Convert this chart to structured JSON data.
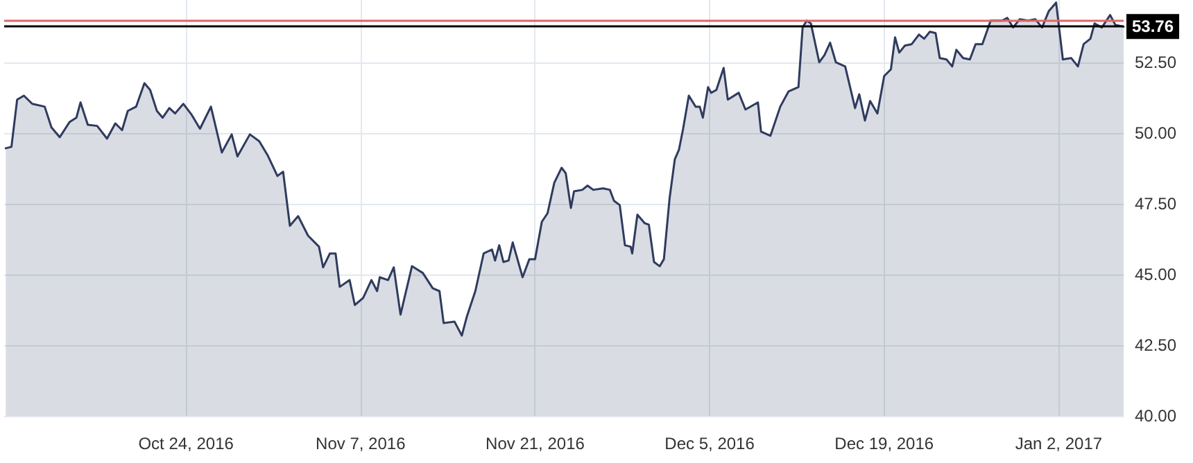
{
  "chart_data": {
    "type": "area",
    "x": [
      "2016-10-09T13:00",
      "2016-10-10T00:00",
      "2016-10-10T11:00",
      "2016-10-11T00:00",
      "2016-10-11T16:00",
      "2016-10-12T16:00",
      "2016-10-13T05:00",
      "2016-10-13T21:00",
      "2016-10-14T16:00",
      "2016-10-15T05:00",
      "2016-10-15T13:00",
      "2016-10-16T03:00",
      "2016-10-16T21:00",
      "2016-10-17T16:00",
      "2016-10-18T08:00",
      "2016-10-18T21:00",
      "2016-10-19T08:00",
      "2016-10-20T00:00",
      "2016-10-20T16:00",
      "2016-10-21T03:00",
      "2016-10-21T16:00",
      "2016-10-22T03:00",
      "2016-10-22T16:00",
      "2016-10-23T03:00",
      "2016-10-23T19:00",
      "2016-10-24T11:00",
      "2016-10-25T03:00",
      "2016-10-26T00:00",
      "2016-10-26T21:00",
      "2016-10-27T16:00",
      "2016-10-28T03:00",
      "2016-10-29T03:00",
      "2016-10-29T21:00",
      "2016-10-30T13:00",
      "2016-10-31T08:00",
      "2016-10-31T19:00",
      "2016-11-01T08:00",
      "2016-11-02T00:00",
      "2016-11-02T19:00",
      "2016-11-03T16:00",
      "2016-11-04T00:00",
      "2016-11-04T13:00",
      "2016-11-05T00:00",
      "2016-11-05T08:00",
      "2016-11-06T03:00",
      "2016-11-06T13:00",
      "2016-11-07T05:00",
      "2016-11-07T21:00",
      "2016-11-08T08:00",
      "2016-11-08T13:00",
      "2016-11-09T05:00",
      "2016-11-09T16:00",
      "2016-11-10T05:00",
      "2016-11-11T03:00",
      "2016-11-12T00:00",
      "2016-11-12T19:00",
      "2016-11-13T08:00",
      "2016-11-13T16:00",
      "2016-11-14T13:00",
      "2016-11-15T03:00",
      "2016-11-15T13:00",
      "2016-11-16T05:00",
      "2016-11-16T21:00",
      "2016-11-17T13:00",
      "2016-11-17T19:00",
      "2016-11-18T03:00",
      "2016-11-18T11:00",
      "2016-11-18T21:00",
      "2016-11-19T05:00",
      "2016-11-20T00:00",
      "2016-11-20T13:00",
      "2016-11-21T00:00",
      "2016-11-21T13:00",
      "2016-11-22T00:00",
      "2016-11-22T13:00",
      "2016-11-23T03:00",
      "2016-11-23T11:00",
      "2016-11-23T21:00",
      "2016-11-24T03:00",
      "2016-11-24T19:00",
      "2016-11-25T05:00",
      "2016-11-25T16:00",
      "2016-11-26T11:00",
      "2016-11-27T00:00",
      "2016-11-27T08:00",
      "2016-11-27T19:00",
      "2016-11-28T05:00",
      "2016-11-28T16:00",
      "2016-11-28T19:00",
      "2016-11-29T05:00",
      "2016-11-29T19:00",
      "2016-11-30T03:00",
      "2016-11-30T13:00",
      "2016-12-01T00:00",
      "2016-12-01T08:00",
      "2016-12-01T19:00",
      "2016-12-02T05:00",
      "2016-12-02T13:00",
      "2016-12-02T21:00",
      "2016-12-03T08:00",
      "2016-12-03T21:00",
      "2016-12-04T05:00",
      "2016-12-04T11:00",
      "2016-12-04T21:00",
      "2016-12-05T03:00",
      "2016-12-05T13:00",
      "2016-12-06T03:00",
      "2016-12-06T11:00",
      "2016-12-07T08:00",
      "2016-12-07T21:00",
      "2016-12-08T21:00",
      "2016-12-09T03:00",
      "2016-12-09T21:00",
      "2016-12-10T16:00",
      "2016-12-11T08:00",
      "2016-12-12T03:00",
      "2016-12-12T11:00",
      "2016-12-12T19:00",
      "2016-12-13T03:00",
      "2016-12-13T19:00",
      "2016-12-14T05:00",
      "2016-12-14T16:00",
      "2016-12-15T03:00",
      "2016-12-15T21:00",
      "2016-12-16T16:00",
      "2016-12-17T00:00",
      "2016-12-17T11:00",
      "2016-12-17T21:00",
      "2016-12-18T11:00",
      "2016-12-19T00:00",
      "2016-12-19T13:00",
      "2016-12-19T21:00",
      "2016-12-20T05:00",
      "2016-12-20T16:00",
      "2016-12-21T05:00",
      "2016-12-21T19:00",
      "2016-12-22T05:00",
      "2016-12-22T16:00",
      "2016-12-23T03:00",
      "2016-12-23T11:00",
      "2016-12-24T00:00",
      "2016-12-24T11:00",
      "2016-12-24T19:00",
      "2016-12-25T08:00",
      "2016-12-25T21:00",
      "2016-12-26T08:00",
      "2016-12-26T21:00",
      "2016-12-27T13:00",
      "2016-12-28T11:00",
      "2016-12-28T21:00",
      "2016-12-29T08:00",
      "2016-12-29T21:00",
      "2016-12-30T13:00",
      "2016-12-31T03:00",
      "2016-12-31T16:00",
      "2017-01-01T05:00",
      "2017-01-01T19:00",
      "2017-01-02T08:00",
      "2017-01-03T00:00",
      "2017-01-03T13:00",
      "2017-01-04T00:00",
      "2017-01-04T13:00",
      "2017-01-04T21:00",
      "2017-01-05T11:00",
      "2017-01-06T03:00",
      "2017-01-06T13:00",
      "2017-01-07T05:00"
    ],
    "series": [
      {
        "color": "#2f3b5e",
        "values": [
          49.46,
          49.51,
          51.18,
          51.32,
          51.03,
          50.93,
          50.2,
          49.85,
          50.39,
          50.54,
          51.08,
          50.29,
          50.25,
          49.8,
          50.34,
          50.1,
          50.78,
          50.93,
          51.76,
          51.52,
          50.78,
          50.54,
          50.88,
          50.69,
          51.03,
          50.64,
          50.15,
          50.93,
          49.31,
          49.95,
          49.17,
          49.95,
          49.71,
          49.22,
          48.48,
          48.63,
          46.72,
          47.06,
          46.37,
          45.98,
          45.25,
          45.74,
          45.74,
          44.56,
          44.8,
          43.92,
          44.17,
          44.8,
          44.41,
          44.9,
          44.8,
          45.25,
          43.58,
          45.29,
          45.05,
          44.51,
          44.41,
          43.28,
          43.33,
          42.84,
          43.53,
          44.41,
          45.74,
          45.88,
          45.49,
          46.03,
          45.44,
          45.49,
          46.13,
          44.9,
          45.54,
          45.54,
          46.86,
          47.16,
          48.24,
          48.77,
          48.58,
          47.35,
          47.94,
          47.99,
          48.14,
          47.99,
          48.04,
          47.99,
          47.6,
          47.45,
          46.03,
          45.98,
          45.74,
          47.11,
          46.81,
          46.76,
          45.44,
          45.29,
          45.54,
          47.7,
          49.07,
          49.41,
          50.15,
          51.32,
          50.93,
          50.93,
          50.54,
          51.62,
          51.42,
          51.52,
          52.3,
          51.18,
          51.42,
          50.83,
          51.08,
          50.05,
          49.9,
          50.93,
          51.47,
          51.62,
          53.73,
          53.97,
          53.87,
          52.5,
          52.75,
          53.19,
          52.5,
          52.35,
          50.88,
          51.37,
          50.44,
          51.13,
          50.69,
          52.01,
          52.25,
          53.38,
          52.84,
          53.09,
          53.14,
          53.48,
          53.33,
          53.58,
          53.53,
          52.65,
          52.6,
          52.35,
          52.94,
          52.65,
          52.6,
          53.14,
          53.14,
          53.97,
          53.97,
          54.07,
          53.73,
          54.02,
          53.97,
          54.02,
          53.73,
          54.31,
          54.61,
          52.6,
          52.65,
          52.35,
          53.14,
          53.33,
          53.87,
          53.73,
          54.17,
          53.82,
          53.76
        ]
      }
    ],
    "xlim": [
      "2016-10-09T10:00",
      "2017-01-07T05:00"
    ],
    "xticks": [
      {
        "value": "2016-10-24",
        "label": "Oct 24, 2016"
      },
      {
        "value": "2016-11-07",
        "label": "Nov 7, 2016"
      },
      {
        "value": "2016-11-21",
        "label": "Nov 21, 2016"
      },
      {
        "value": "2016-12-05",
        "label": "Dec 5, 2016"
      },
      {
        "value": "2016-12-19",
        "label": "Dec 19, 2016"
      },
      {
        "value": "2017-01-02",
        "label": "Jan 2, 2017"
      }
    ],
    "ylim": [
      40,
      54.7
    ],
    "yticks": [
      {
        "value": 40,
        "label": "40.00"
      },
      {
        "value": 42.5,
        "label": "42.50"
      },
      {
        "value": 45,
        "label": "45.00"
      },
      {
        "value": 47.5,
        "label": "47.50"
      },
      {
        "value": 50,
        "label": "50.00"
      },
      {
        "value": 52.5,
        "label": "52.50"
      }
    ],
    "ref_lines": [
      {
        "axis": "y",
        "value": 54.0,
        "color": "#e06666"
      },
      {
        "axis": "y",
        "value": 53.76,
        "label": "53.76",
        "color": "#000000"
      }
    ],
    "grid": true,
    "marker": "none",
    "line_style": "solid"
  }
}
